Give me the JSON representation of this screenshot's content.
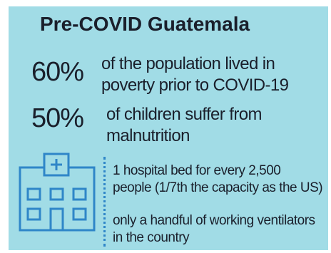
{
  "title": "Pre-COVID Guatemala",
  "stats": [
    {
      "value": "60%",
      "lines": [
        "of the population lived in",
        "poverty prior to COVID-19"
      ]
    },
    {
      "value": "50%",
      "lines": [
        "of children suffer from",
        "malnutrition"
      ]
    }
  ],
  "facts": [
    {
      "lines": [
        "1 hospital bed for every 2,500",
        "people (1/7th the capacity as the US)"
      ]
    },
    {
      "lines": [
        "only a handful of working ventilators",
        "in the country"
      ]
    }
  ],
  "icons": {
    "hospital": "hospital-icon"
  },
  "colors": {
    "panel": "#a1dce6",
    "text": "#1a1f2b",
    "accent": "#2f86c8"
  }
}
